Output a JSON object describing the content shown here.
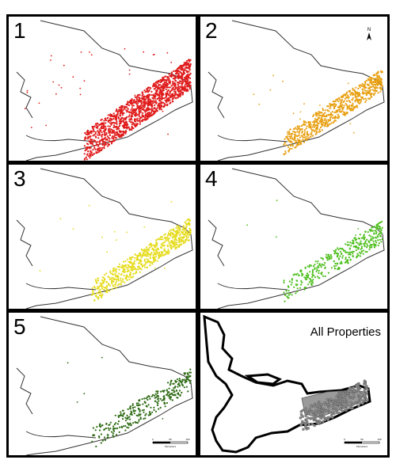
{
  "figure": {
    "panels": [
      {
        "id": "1",
        "label": "1",
        "color": "#e01b1b",
        "count": 1400,
        "spread": "wide"
      },
      {
        "id": "2",
        "label": "2",
        "color": "#e8a012",
        "count": 700,
        "spread": "mid"
      },
      {
        "id": "3",
        "label": "3",
        "color": "#e6dc1e",
        "count": 650,
        "spread": "mid"
      },
      {
        "id": "4",
        "label": "4",
        "color": "#4fbf1f",
        "count": 380,
        "spread": "narrow"
      },
      {
        "id": "5",
        "label": "5",
        "color": "#2e6b14",
        "count": 320,
        "spread": "narrow"
      },
      {
        "id": "all",
        "label": "All Properties",
        "color": "#8a8a8a",
        "count": 0
      }
    ],
    "scalebar": {
      "ticks": [
        "0",
        "50",
        "100"
      ],
      "unit": "Kilometers"
    },
    "north_label": "N"
  }
}
